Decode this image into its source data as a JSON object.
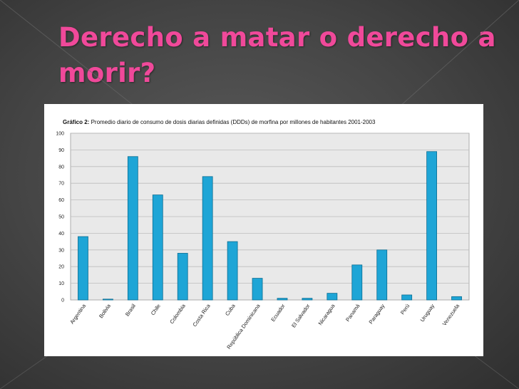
{
  "slide": {
    "title": "Derecho a matar o derecho a morir?"
  },
  "colors": {
    "title": "#f0499a",
    "bar": "#1ea5d6",
    "bar_stroke": "#0b6d92",
    "plot_bg": "#e9e9e9",
    "grid": "#bdbdbd"
  },
  "chart_data": {
    "type": "bar",
    "title": "Gráfico 2: Promedio diario de consumo de dosis diarias definidas (DDDs) de morfina por millones de habitantes 2001-2003",
    "title_bold": "Gráfico 2:",
    "title_rest": " Promedio diario de consumo de dosis diarias definidas (DDDs) de morfina por millones de habitantes 2001-2003",
    "xlabel": "",
    "ylabel": "",
    "ylim": [
      0,
      100
    ],
    "yticks": [
      0,
      10,
      20,
      30,
      40,
      50,
      60,
      70,
      80,
      90,
      100
    ],
    "grid": true,
    "categories": [
      "Argentina",
      "Bolivia",
      "Brasil",
      "Chile",
      "Colombia",
      "Costa Rica",
      "Cuba",
      "República Dominicana",
      "Ecuador",
      "El Salvador",
      "Nicaragua",
      "Panamá",
      "Paraguay",
      "Perú",
      "Uruguay",
      "Venezuela"
    ],
    "values": [
      38,
      0.5,
      86,
      63,
      28,
      74,
      35,
      13,
      1,
      1,
      4,
      21,
      30,
      3,
      89,
      2
    ]
  }
}
